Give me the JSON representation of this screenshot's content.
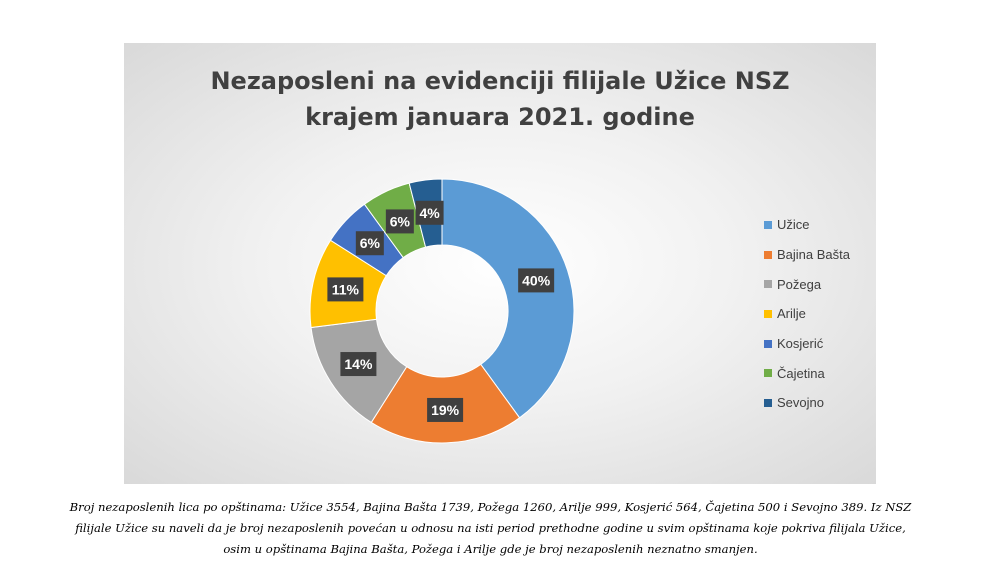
{
  "chart_data": {
    "type": "pie",
    "variant": "donut",
    "title_lines": [
      "Nezaposleni na evidenciji filijale Užice NSZ",
      "krajem januara 2021. godine"
    ],
    "categories": [
      "Užice",
      "Bajina Bašta",
      "Požega",
      "Arilje",
      "Kosjerić",
      "Čajetina",
      "Sevojno"
    ],
    "values": [
      40,
      19,
      14,
      11,
      6,
      6,
      4
    ],
    "labels": [
      "40%",
      "19%",
      "14%",
      "11%",
      "6%",
      "6%",
      "4%"
    ],
    "colors": [
      "#5b9bd5",
      "#ed7d31",
      "#a5a5a5",
      "#ffc000",
      "#4472c4",
      "#70ad47",
      "#255e91"
    ],
    "legend_position": "right"
  },
  "caption_lines": [
    "Broj nezaposlenih lica po opštinama: Užice 3554, Bajina Bašta 1739, Požega 1260, Arilje 999, Kosjerić 564, Čajetina 500 i Sevojno 389. Iz NSZ",
    "filijale Užice su naveli da je broj nezaposlenih povećan u odnosu na isti period prethodne godine u svim opštinama koje pokriva filijala Užice,",
    "osim u opštinama Bajina Bašta, Požega i Arilje gde je broj nezaposlenih neznatno smanjen."
  ]
}
